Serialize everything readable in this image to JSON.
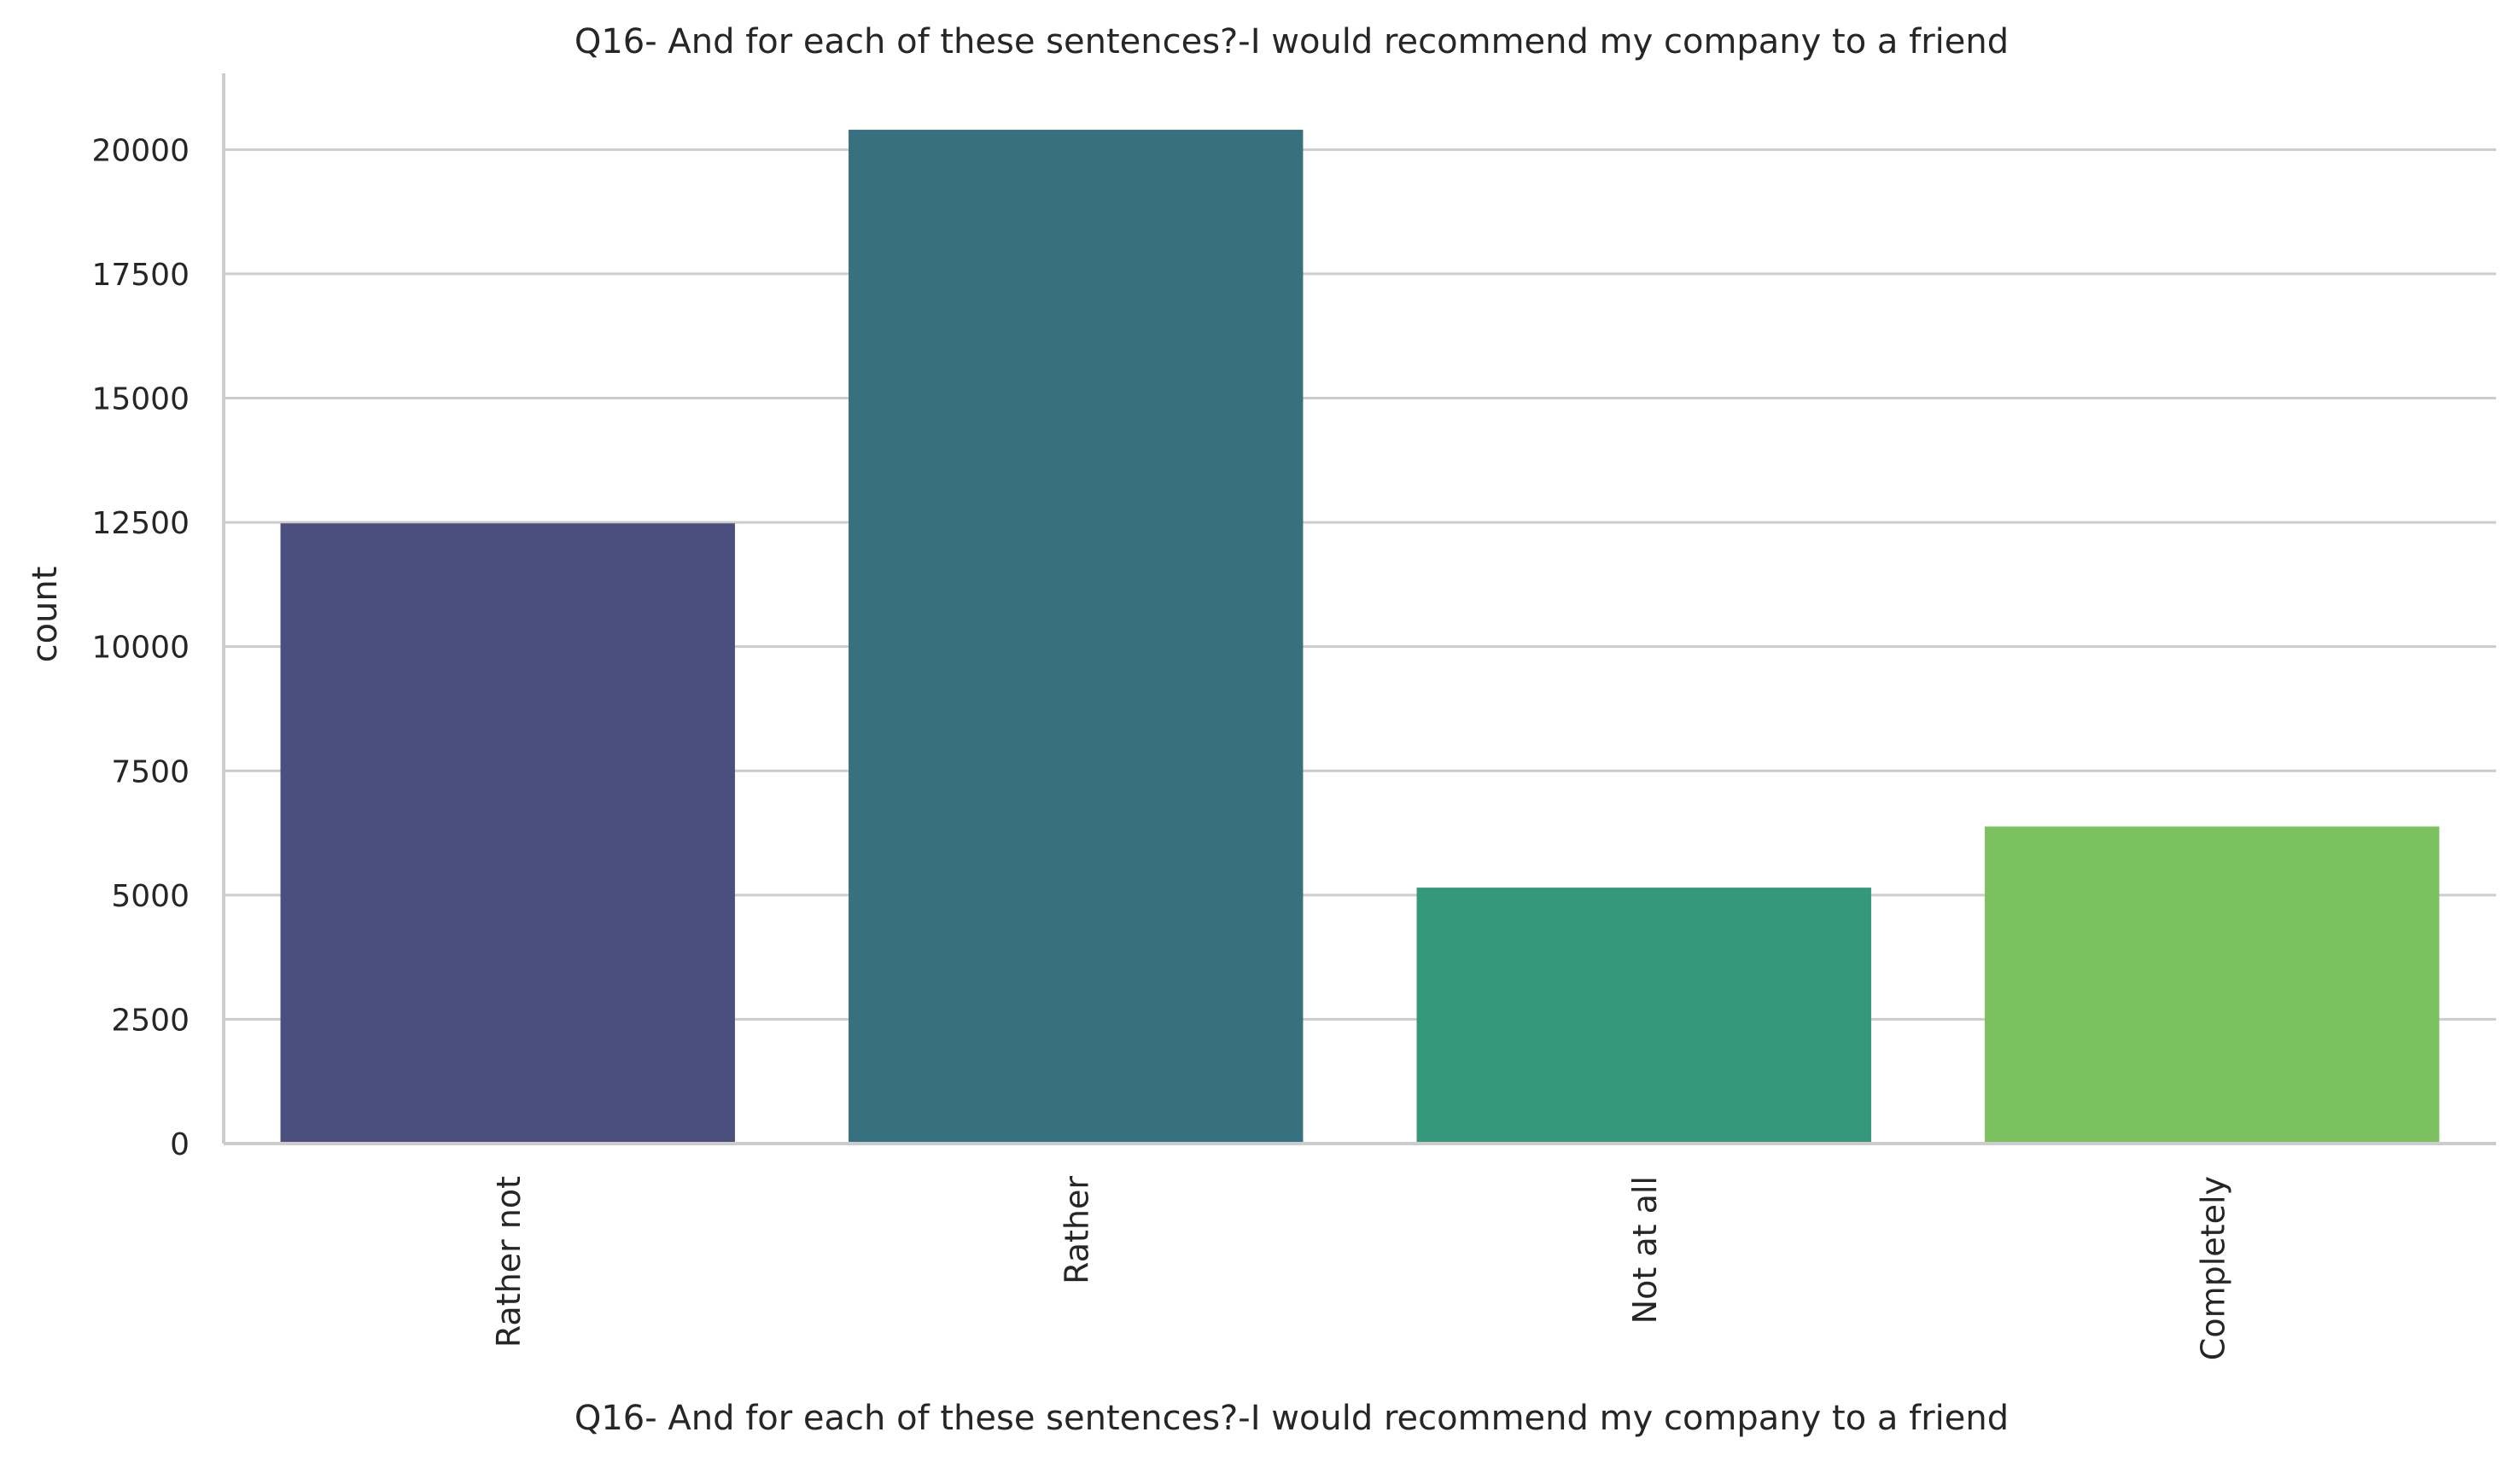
{
  "chart_data": {
    "type": "bar",
    "title": "Q16- And for each of these sentences?-I would recommend my company to a friend",
    "xlabel": "Q16- And for each of these sentences?-I would recommend my company to a friend",
    "ylabel": "count",
    "categories": [
      "Rather not",
      "Rather",
      "Not at all",
      "Completely"
    ],
    "values": [
      12480,
      20400,
      5150,
      6380
    ],
    "colors": [
      "#4a4f7d",
      "#37717f",
      "#35987b",
      "#7cc160"
    ],
    "ylim": [
      0,
      21500
    ],
    "yticks": [
      0,
      2500,
      5000,
      7500,
      10000,
      12500,
      15000,
      17500,
      20000
    ],
    "grid": "horizontal",
    "legend": "none"
  }
}
